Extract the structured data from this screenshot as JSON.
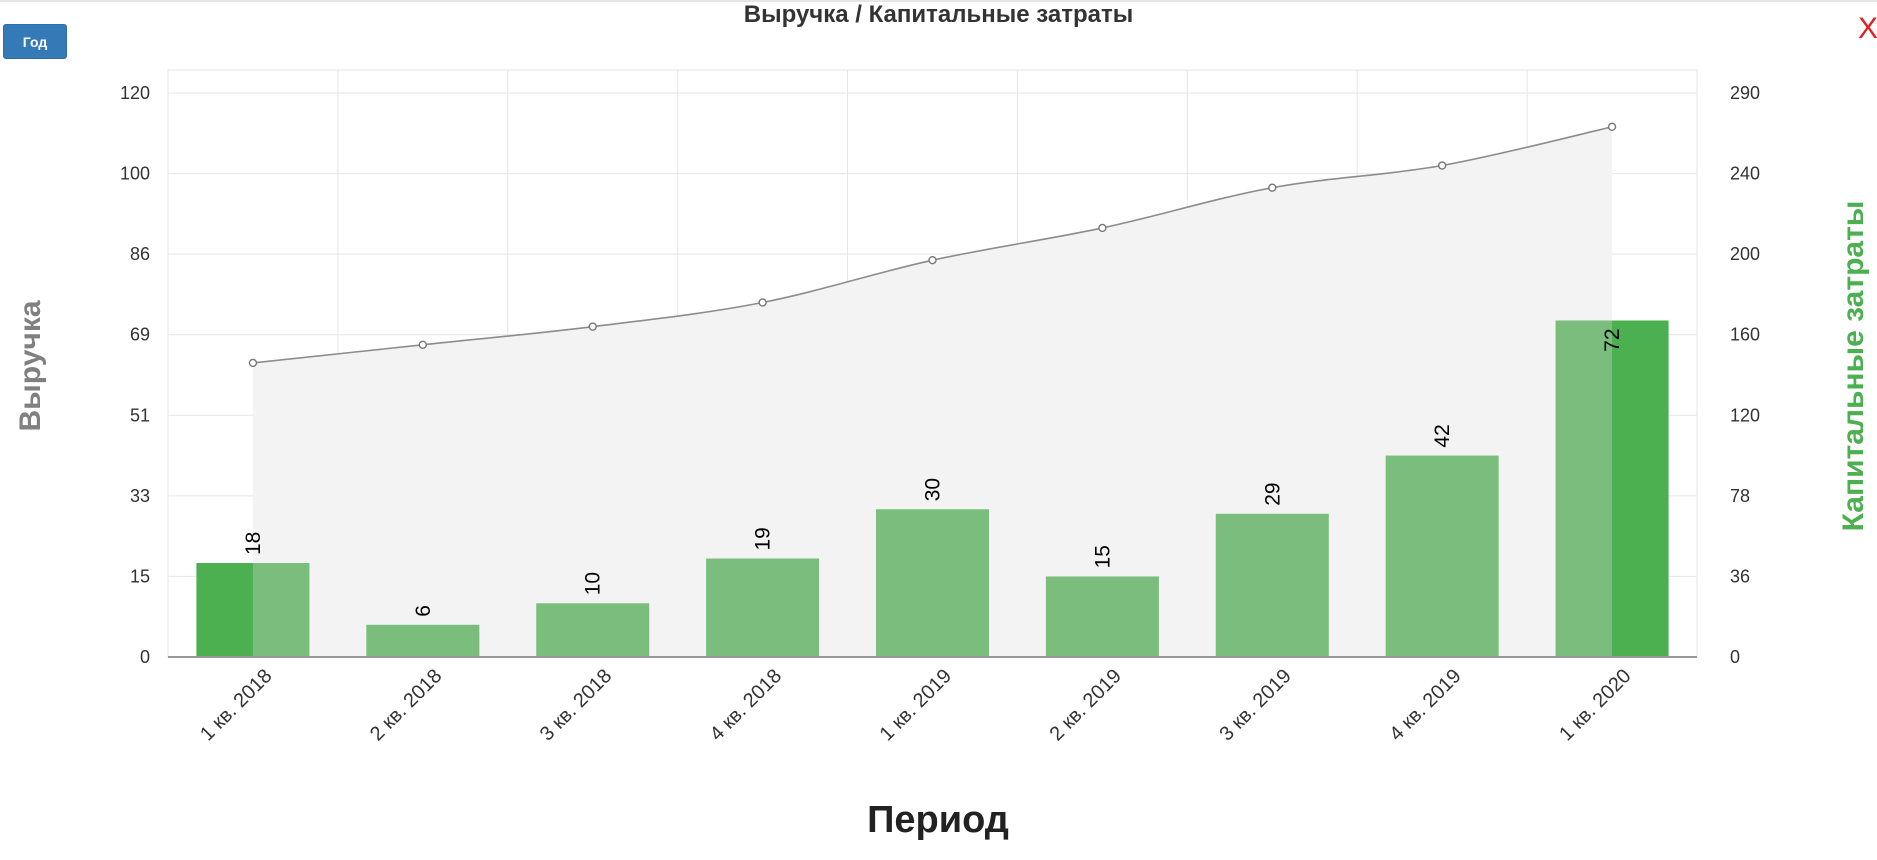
{
  "header": {
    "title": "Выручка / Капитальные затраты",
    "mode_button": "Год",
    "close_glyph": "X"
  },
  "colors": {
    "bar": "#7abd7c",
    "bar_dark": "#4caf50",
    "line": "#8c8c8c",
    "area": "#f3f3f3",
    "right_axis_title": "#4caf50",
    "left_axis_title": "#808080",
    "grid": "#e6e6e6"
  },
  "chart_data": {
    "type": "bar",
    "title": "Выручка / Капитальные затраты",
    "xlabel": "Период",
    "ylabel": "Выручка",
    "y2label": "Капитальные затраты",
    "categories": [
      "1 кв. 2018",
      "2 кв. 2018",
      "3 кв. 2018",
      "4 кв. 2018",
      "1 кв. 2019",
      "2 кв. 2019",
      "3 кв. 2019",
      "4 кв. 2019",
      "1 кв. 2020"
    ],
    "y_ticks": [
      "0",
      "15",
      "33",
      "51",
      "69",
      "86",
      "100",
      "120"
    ],
    "y2_ticks": [
      "0",
      "36",
      "78",
      "120",
      "160",
      "200",
      "240",
      "290"
    ],
    "ylim": [
      0,
      120
    ],
    "y2lim": [
      0,
      290
    ],
    "grid": true,
    "series": [
      {
        "name": "Выручка",
        "type": "bar",
        "axis": "left",
        "values": [
          18,
          6,
          10,
          19,
          30,
          15,
          29,
          42,
          72
        ],
        "labels": [
          "18",
          "6",
          "10",
          "19",
          "30",
          "15",
          "29",
          "42",
          "72"
        ]
      },
      {
        "name": "Капитальные затраты",
        "type": "area",
        "axis": "right",
        "values": [
          146,
          155,
          164,
          176,
          197,
          213,
          233,
          245,
          269
        ]
      }
    ]
  }
}
